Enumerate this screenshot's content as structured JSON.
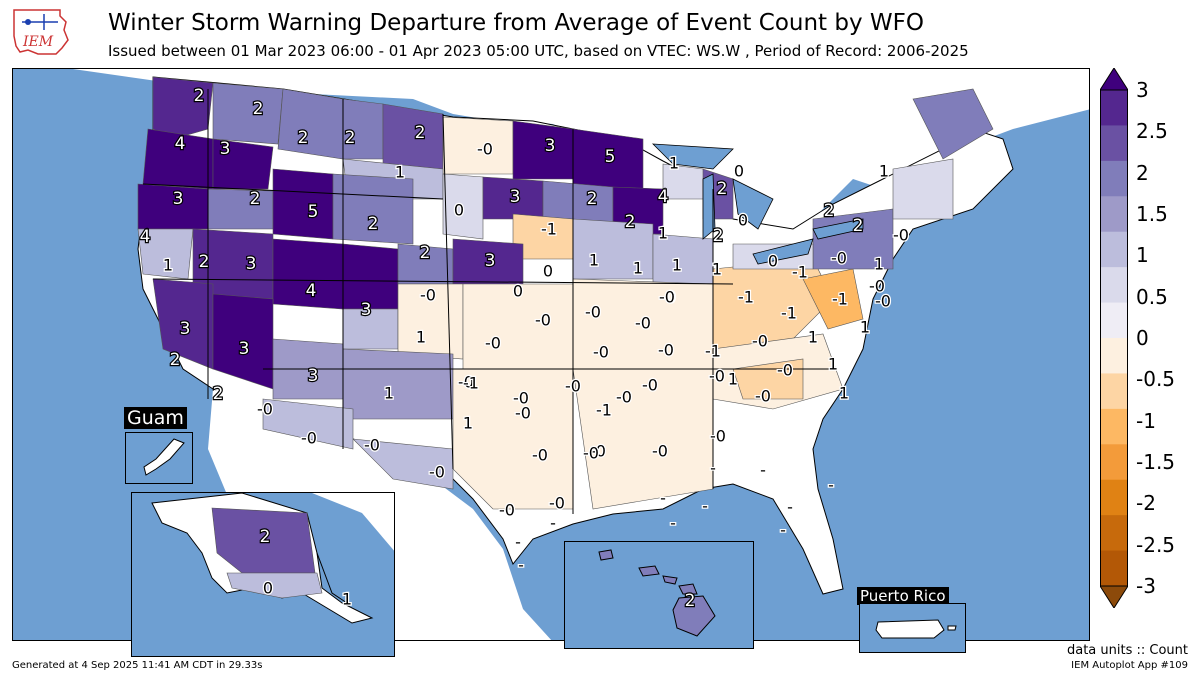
{
  "header": {
    "title": "Winter Storm Warning Departure from Average of Event Count by WFO",
    "subtitle": "Issued between 01 Mar 2023 06:00 - 01 Apr 2023 05:00 UTC, based on VTEC: WS.W  , Period of Record: 2006-2025",
    "logo_text": "IEM"
  },
  "colorbar": {
    "ticks": [
      "3",
      "2.5",
      "2",
      "1.5",
      "1",
      "0.5",
      "0",
      "-0.5",
      "-1",
      "-1.5",
      "-2",
      "-2.5",
      "-3"
    ],
    "colors": [
      "#3f007d",
      "#54278f",
      "#6a51a3",
      "#807dba",
      "#9e9ac8",
      "#bcbddc",
      "#dadaeb",
      "#efedf5",
      "#fdf0e0",
      "#fdd5a4",
      "#fdb863",
      "#f39b3a",
      "#e08214",
      "#c76a0c",
      "#b35806",
      "#8c4a0a"
    ],
    "units": "data units :: Count"
  },
  "insets": {
    "guam": "Guam",
    "alaska_values": [
      "2",
      "0",
      "1"
    ],
    "hawaii_values": [
      "2"
    ],
    "puerto_rico": "Puerto Rico"
  },
  "map": {
    "colors": {
      "ocean": "#6e9fd2",
      "land_none": "#ffffff",
      "lake": "#6e9fd2"
    },
    "labels": [
      {
        "v": "2",
        "c": "#54278f"
      },
      {
        "v": "2",
        "c": "#807dba"
      },
      {
        "v": "2",
        "c": "#807dba"
      },
      {
        "v": "2",
        "c": "#807dba"
      },
      {
        "v": "2",
        "c": "#6a51a3"
      },
      {
        "v": "-0",
        "c": "#fdf0e0"
      },
      {
        "v": "3",
        "c": "#3f007d"
      },
      {
        "v": "5",
        "c": "#3f007d"
      },
      {
        "v": "4",
        "c": "#3f007d"
      },
      {
        "v": "3",
        "c": "#3f007d"
      },
      {
        "v": "1",
        "c": "#bcbddc"
      },
      {
        "v": "3",
        "c": "#3f007d"
      },
      {
        "v": "2",
        "c": "#807dba"
      },
      {
        "v": "5",
        "c": "#3f007d"
      },
      {
        "v": "2",
        "c": "#807dba"
      },
      {
        "v": "0",
        "c": "#dadaeb"
      },
      {
        "v": "3",
        "c": "#54278f"
      },
      {
        "v": "2",
        "c": "#807dba"
      },
      {
        "v": "4",
        "c": "#3f007d"
      },
      {
        "v": "2",
        "c": "#6a51a3"
      },
      {
        "v": "0",
        "c": "#dadaeb"
      },
      {
        "v": "1",
        "c": "#bcbddc"
      },
      {
        "v": "0",
        "c": "#dadaeb"
      },
      {
        "v": "4",
        "c": "#54278f"
      },
      {
        "v": "1",
        "c": "#bcbddc"
      },
      {
        "v": "2",
        "c": "#6a51a3"
      },
      {
        "v": "3",
        "c": "#54278f"
      },
      {
        "v": "2",
        "c": "#807dba"
      },
      {
        "v": "-1",
        "c": "#fdd5a4"
      },
      {
        "v": "2",
        "c": "#807dba"
      },
      {
        "v": "1",
        "c": "#bcbddc"
      },
      {
        "v": "2",
        "c": "#807dba"
      },
      {
        "v": "2",
        "c": "#807dba"
      },
      {
        "v": "2",
        "c": "#807dba"
      },
      {
        "v": "-0",
        "c": "#fdf0e0"
      },
      {
        "v": "1",
        "c": "#bcbddc"
      },
      {
        "v": "4",
        "c": "#3f007d"
      },
      {
        "v": "3",
        "c": "#3f007d"
      },
      {
        "v": "-0",
        "c": "#fdf0e0"
      },
      {
        "v": "3",
        "c": "#54278f"
      },
      {
        "v": "0",
        "c": "#dadaeb"
      },
      {
        "v": "1",
        "c": "#bcbddc"
      },
      {
        "v": "1",
        "c": "#bcbddc"
      },
      {
        "v": "1",
        "c": "#bcbddc"
      },
      {
        "v": "1",
        "c": "#bcbddc"
      },
      {
        "v": "0",
        "c": "#dadaeb"
      },
      {
        "v": "-1",
        "c": "#fdd5a4"
      },
      {
        "v": "-0",
        "c": "#fdf0e0"
      },
      {
        "v": "1",
        "c": "#bcbddc"
      },
      {
        "v": "3",
        "c": "#54278f"
      },
      {
        "v": "0",
        "c": "#dadaeb"
      },
      {
        "v": "1",
        "c": "#bcbddc"
      },
      {
        "v": "-0",
        "c": "#fdf0e0"
      },
      {
        "v": "-0",
        "c": "#fdf0e0"
      },
      {
        "v": "-0",
        "c": "#fdf0e0"
      },
      {
        "v": "-0",
        "c": "#fdf0e0"
      },
      {
        "v": "-0",
        "c": "#fdf0e0"
      },
      {
        "v": "-1",
        "c": "#fdd5a4"
      },
      {
        "v": "-1",
        "c": "#fdd5a4"
      },
      {
        "v": "-1",
        "c": "#fdb863"
      },
      {
        "v": "3",
        "c": "#54278f"
      },
      {
        "v": "2",
        "c": "#807dba"
      },
      {
        "v": "3",
        "c": "#54278f"
      },
      {
        "v": "1",
        "c": "#bcbddc"
      },
      {
        "v": "-0",
        "c": "#fdf0e0"
      },
      {
        "v": "-0",
        "c": "#fdf0e0"
      },
      {
        "v": "-0",
        "c": "#fdf0e0"
      },
      {
        "v": "-0",
        "c": "#fdf0e0"
      },
      {
        "v": "-0",
        "c": "#fdf0e0"
      },
      {
        "v": "-1",
        "c": "#fdd5a4"
      },
      {
        "v": "-0",
        "c": "#fdf0e0"
      },
      {
        "v": "1",
        "c": "#bcbddc"
      },
      {
        "v": "1",
        "c": "#bcbddc"
      },
      {
        "v": "2",
        "c": "#807dba"
      },
      {
        "v": "-0",
        "c": "#fdf0e0"
      },
      {
        "v": "-0",
        "c": "#fdf0e0"
      },
      {
        "v": "-0",
        "c": "#fdf0e0"
      },
      {
        "v": "-0",
        "c": "#fdf0e0"
      },
      {
        "v": "-1",
        "c": "#fdd5a4"
      },
      {
        "v": "-0",
        "c": "#fdf0e0"
      },
      {
        "v": "-1",
        "c": "#fdd5a4"
      },
      {
        "v": "-0",
        "c": "#fdf0e0"
      },
      {
        "v": "1",
        "c": "#dadaeb"
      },
      {
        "v": "1",
        "c": "#dadaeb"
      },
      {
        "v": "-0",
        "c": "#fdf0e0"
      },
      {
        "v": "-0",
        "c": "#fdf0e0"
      },
      {
        "v": "-0",
        "c": "#fdf0e0"
      },
      {
        "v": "-0",
        "c": "#fdf0e0"
      },
      {
        "v": "-0",
        "c": "#fdf0e0"
      },
      {
        "v": "-0",
        "c": "#fdf0e0"
      },
      {
        "v": "-0",
        "c": "#fdf0e0"
      },
      {
        "v": "1",
        "c": "#dadaeb"
      },
      {
        "v": "1",
        "c": "#dadaeb"
      },
      {
        "v": "-0",
        "c": "#fdf0e0"
      },
      {
        "v": "-0",
        "c": "#fdf0e0"
      },
      {
        "v": "-0",
        "c": "#fdf0e0"
      },
      {
        "v": "-0",
        "c": "#fdf0e0"
      },
      {
        "v": "-0",
        "c": "#fdf0e0"
      },
      {
        "v": "-0",
        "c": "#fdf0e0"
      },
      {
        "v": "-0",
        "c": "#fdf0e0"
      },
      {
        "v": "-",
        "c": "#ffffff"
      },
      {
        "v": "-",
        "c": "#ffffff"
      },
      {
        "v": "-",
        "c": "#ffffff"
      },
      {
        "v": "-",
        "c": "#ffffff"
      },
      {
        "v": "-",
        "c": "#ffffff"
      },
      {
        "v": "-",
        "c": "#ffffff"
      },
      {
        "v": "-",
        "c": "#ffffff"
      },
      {
        "v": "-",
        "c": "#ffffff"
      },
      {
        "v": "-",
        "c": "#ffffff"
      },
      {
        "v": "-",
        "c": "#ffffff"
      },
      {
        "v": "-",
        "c": "#ffffff"
      },
      {
        "v": "-",
        "c": "#ffffff"
      },
      {
        "v": "-",
        "c": "#ffffff"
      }
    ]
  },
  "footer": {
    "generated": "Generated at 4 Sep 2025 11:41 AM CDT in 29.33s",
    "app": "IEM Autoplot App #109"
  }
}
